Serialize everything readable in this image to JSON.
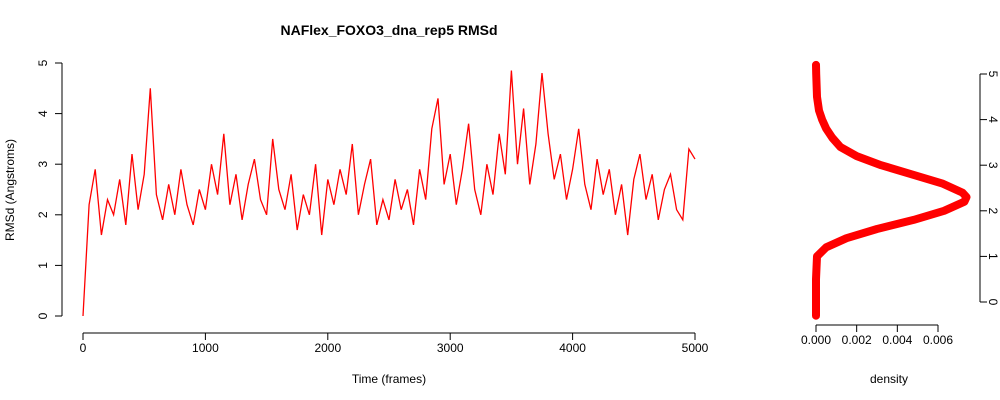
{
  "chart_data": [
    {
      "type": "line",
      "title": "NAFlex_FOXO3_dna_rep5 RMSd",
      "xlabel": "Time (frames)",
      "ylabel": "RMSd (Angstroms)",
      "xlim": [
        0,
        5000
      ],
      "xticks": [
        0,
        1000,
        2000,
        3000,
        4000,
        5000
      ],
      "ylim": [
        0,
        5
      ],
      "yticks": [
        0,
        1,
        2,
        3,
        4,
        5
      ],
      "x": [
        0,
        50,
        100,
        150,
        200,
        250,
        300,
        350,
        400,
        450,
        500,
        550,
        600,
        650,
        700,
        750,
        800,
        850,
        900,
        950,
        1000,
        1050,
        1100,
        1150,
        1200,
        1250,
        1300,
        1350,
        1400,
        1450,
        1500,
        1550,
        1600,
        1650,
        1700,
        1750,
        1800,
        1850,
        1900,
        1950,
        2000,
        2050,
        2100,
        2150,
        2200,
        2250,
        2300,
        2350,
        2400,
        2450,
        2500,
        2550,
        2600,
        2650,
        2700,
        2750,
        2800,
        2850,
        2900,
        2950,
        3000,
        3050,
        3100,
        3150,
        3200,
        3250,
        3300,
        3350,
        3400,
        3450,
        3500,
        3550,
        3600,
        3650,
        3700,
        3750,
        3800,
        3850,
        3900,
        3950,
        4000,
        4050,
        4100,
        4150,
        4200,
        4250,
        4300,
        4350,
        4400,
        4450,
        4500,
        4550,
        4600,
        4650,
        4700,
        4750,
        4800,
        4850,
        4900,
        4950,
        5000
      ],
      "series": [
        {
          "name": "RMSd",
          "color": "#ff0000",
          "values": [
            0.0,
            2.2,
            2.9,
            1.6,
            2.3,
            2.0,
            2.7,
            1.8,
            3.2,
            2.1,
            2.8,
            4.5,
            2.4,
            1.9,
            2.6,
            2.0,
            2.9,
            2.2,
            1.8,
            2.5,
            2.1,
            3.0,
            2.4,
            3.6,
            2.2,
            2.8,
            1.9,
            2.6,
            3.1,
            2.3,
            2.0,
            3.5,
            2.5,
            2.1,
            2.8,
            1.7,
            2.4,
            2.0,
            3.0,
            1.6,
            2.7,
            2.2,
            2.9,
            2.4,
            3.4,
            2.0,
            2.6,
            3.1,
            1.8,
            2.3,
            1.9,
            2.7,
            2.1,
            2.5,
            1.8,
            2.9,
            2.3,
            3.7,
            4.3,
            2.6,
            3.2,
            2.2,
            2.9,
            3.8,
            2.5,
            2.0,
            3.0,
            2.4,
            3.6,
            2.8,
            4.85,
            3.0,
            4.1,
            2.6,
            3.4,
            4.8,
            3.6,
            2.7,
            3.2,
            2.3,
            2.9,
            3.7,
            2.6,
            2.1,
            3.1,
            2.4,
            2.9,
            2.0,
            2.6,
            1.6,
            2.7,
            3.2,
            2.3,
            2.8,
            1.9,
            2.5,
            2.8,
            2.1,
            1.9,
            3.3,
            3.1
          ]
        }
      ]
    },
    {
      "type": "density",
      "xlabel": "density",
      "xlim": [
        0,
        0.006
      ],
      "xticks": [
        {
          "value": 0,
          "label": "0.000"
        },
        {
          "value": 0.002,
          "label": "0.002"
        },
        {
          "value": 0.004,
          "label": "0.004"
        },
        {
          "value": 0.006,
          "label": "0.006"
        }
      ],
      "ylim": [
        0,
        5
      ],
      "yticks": [
        0,
        1,
        2,
        3,
        4,
        5
      ],
      "color": "#ff0000",
      "y": [
        -0.3,
        0.0,
        0.5,
        1.0,
        1.2,
        1.4,
        1.6,
        1.8,
        2.0,
        2.2,
        2.3,
        2.4,
        2.6,
        2.8,
        3.0,
        3.2,
        3.4,
        3.6,
        3.8,
        4.0,
        4.2,
        4.5,
        5.0,
        5.2
      ],
      "values": [
        0,
        0,
        0,
        5e-05,
        0.0005,
        0.0015,
        0.003,
        0.0048,
        0.0063,
        0.0073,
        0.0074,
        0.0072,
        0.0062,
        0.0047,
        0.0032,
        0.002,
        0.0012,
        0.0008,
        0.0005,
        0.0003,
        0.00015,
        5e-05,
        1e-05,
        0
      ]
    }
  ]
}
